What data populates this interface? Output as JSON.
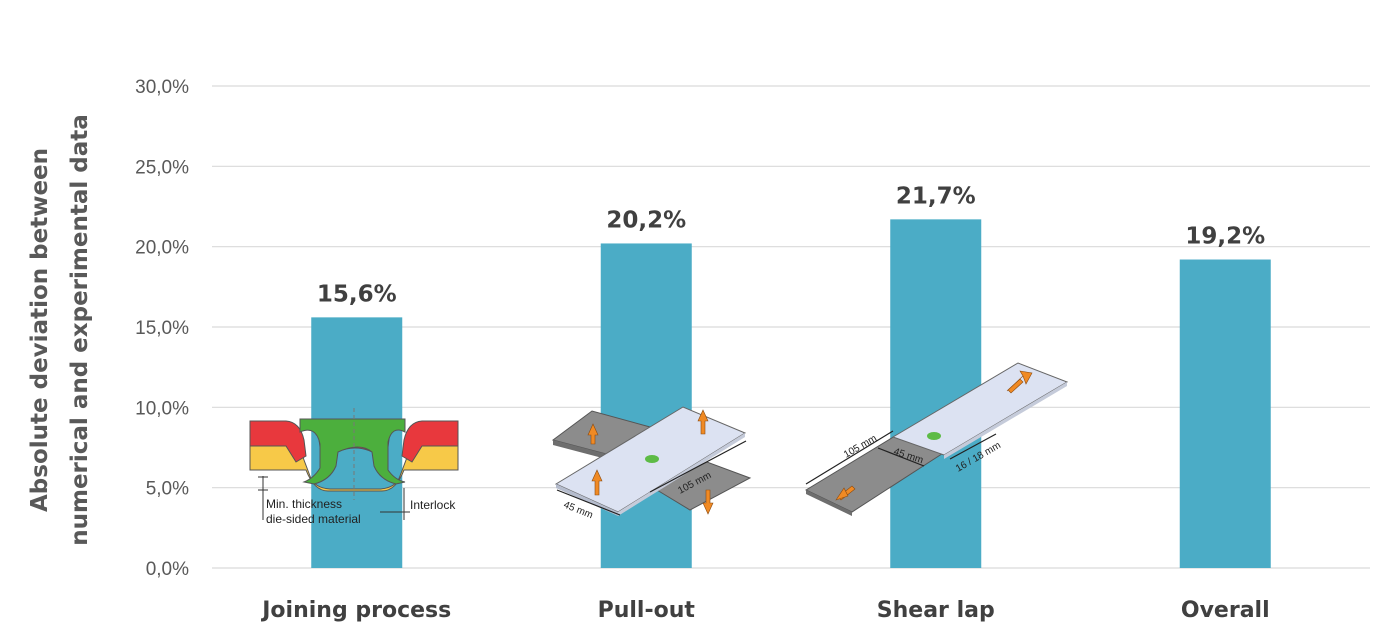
{
  "chart_data": {
    "type": "bar",
    "categories": [
      "Joining process",
      "Pull-out",
      "Shear lap",
      "Overall"
    ],
    "values": [
      15.6,
      20.2,
      21.7,
      19.2
    ],
    "value_labels": [
      "15,6%",
      "20,2%",
      "21,7%",
      "19,2%"
    ],
    "ylabel_line1": "Absolute deviation between",
    "ylabel_line2": "numerical and experimental data",
    "yticks": [
      0,
      5,
      10,
      15,
      20,
      25,
      30
    ],
    "ytick_labels": [
      "0,0%",
      "5,0%",
      "10,0%",
      "15,0%",
      "20,0%",
      "25,0%",
      "30,0%"
    ],
    "ylim": [
      0,
      30
    ],
    "grid": true,
    "bar_color": "#4BACC6"
  },
  "annotations": {
    "joining": {
      "thickness_line1": "Min. thickness",
      "thickness_line2": "die-sided material",
      "interlock": "Interlock"
    },
    "pullout": {
      "dim_width": "45 mm",
      "dim_length": "105 mm"
    },
    "shearlap": {
      "dim_length": "105 mm",
      "dim_overlap": "45 mm",
      "dim_width": "16 / 18 mm"
    }
  }
}
